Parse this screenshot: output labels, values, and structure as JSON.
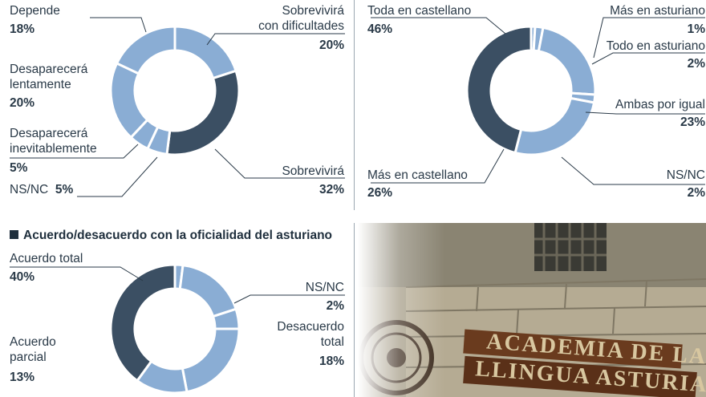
{
  "chart_data": [
    {
      "type": "donut",
      "title": "",
      "categories": [
        "Sobrevivirá con dificultades",
        "Sobrevivirá",
        "NS/NC",
        "Desaparecerá inevitablemente",
        "Desaparecerá lentamente",
        "Depende"
      ],
      "values": [
        20,
        32,
        5,
        5,
        20,
        18
      ],
      "value_labels": [
        "20%",
        "32%",
        "5%",
        "5%",
        "20%",
        "18%"
      ],
      "colors": [
        "#8aadd4",
        "#3b4f63",
        "#8aadd4",
        "#8aadd4",
        "#8aadd4",
        "#8aadd4"
      ]
    },
    {
      "type": "donut",
      "title": "",
      "categories": [
        "Más en asturiano",
        "Todo en asturiano",
        "Ambas por igual",
        "NS/NC",
        "Más en castellano",
        "Toda en castellano"
      ],
      "values": [
        1,
        2,
        23,
        2,
        26,
        46
      ],
      "value_labels": [
        "1%",
        "2%",
        "23%",
        "2%",
        "26%",
        "46%"
      ],
      "colors": [
        "#8aadd4",
        "#8aadd4",
        "#8aadd4",
        "#8aadd4",
        "#8aadd4",
        "#3b4f63"
      ]
    },
    {
      "type": "donut",
      "title": "Acuerdo/desacuerdo con la oficialidad del asturiano",
      "categories": [
        "NS/NC",
        "Desacuerdo total",
        "",
        "",
        "Acuerdo parcial",
        "Acuerdo total"
      ],
      "values": [
        2,
        18,
        5,
        22,
        13,
        40
      ],
      "value_labels": [
        "2%",
        "18%",
        "",
        "",
        "13%",
        "40%"
      ],
      "colors": [
        "#8aadd4",
        "#8aadd4",
        "#8aadd4",
        "#8aadd4",
        "#8aadd4",
        "#3b4f63"
      ]
    }
  ],
  "labels": {
    "c1": {
      "depende": "Depende",
      "depende_pct": "18%",
      "sobrev_dif_1": "Sobrevivirá",
      "sobrev_dif_2": "con dificultades",
      "sobrev_dif_pct": "20%",
      "desap_lent_1": "Desaparecerá",
      "desap_lent_2": "lentamente",
      "desap_lent_pct": "20%",
      "desap_inev_1": "Desaparecerá",
      "desap_inev_2": "inevitablemente",
      "desap_inev_pct": "5%",
      "nsnc": "NS/NC",
      "nsnc_pct": "5%",
      "sobrev": "Sobrevivirá",
      "sobrev_pct": "32%"
    },
    "c2": {
      "toda_cast": "Toda en castellano",
      "toda_cast_pct": "46%",
      "mas_ast": "Más en asturiano",
      "mas_ast_pct": "1%",
      "todo_ast": "Todo en asturiano",
      "todo_ast_pct": "2%",
      "ambas": "Ambas por igual",
      "ambas_pct": "23%",
      "mas_cast": "Más en castellano",
      "mas_cast_pct": "26%",
      "nsnc": "NS/NC",
      "nsnc_pct": "2%"
    },
    "c3": {
      "title": "Acuerdo/desacuerdo con la oficialidad del asturiano",
      "ac_total": "Acuerdo total",
      "ac_total_pct": "40%",
      "nsnc": "NS/NC",
      "nsnc_pct": "2%",
      "desac_1": "Desacuerdo",
      "desac_2": "total",
      "desac_pct": "18%",
      "ac_parcial_1": "Acuerdo",
      "ac_parcial_2": "parcial",
      "ac_parcial_pct": "13%"
    }
  },
  "photo": {
    "sign_line1": "ACADEMIA DE LA",
    "sign_line2": "LLINGUA ASTURIANA"
  }
}
